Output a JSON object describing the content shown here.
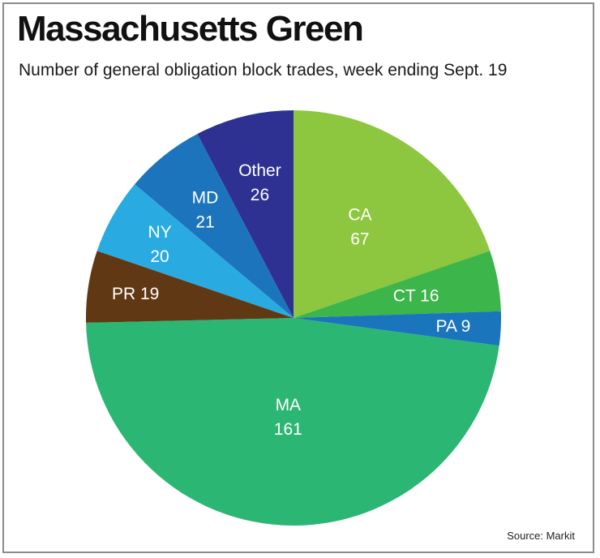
{
  "header": {
    "title": "Massachusetts Green",
    "subtitle": "Number of general obligation block trades, week ending Sept. 19"
  },
  "footer": {
    "source": "Source: Markit"
  },
  "chart_data": {
    "type": "pie",
    "title": "Massachusetts Green",
    "subtitle": "Number of general obligation block trades, week ending Sept. 19",
    "slices": [
      {
        "label": "CA",
        "value": 67,
        "color": "#8dc63f"
      },
      {
        "label": "CT",
        "value": 16,
        "color": "#3cb54a"
      },
      {
        "label": "PA",
        "value": 9,
        "color": "#1a75bc"
      },
      {
        "label": "MA",
        "value": 161,
        "color": "#2bb673"
      },
      {
        "label": "PR",
        "value": 19,
        "color": "#603813"
      },
      {
        "label": "NY",
        "value": 20,
        "color": "#29abe2"
      },
      {
        "label": "MD",
        "value": 21,
        "color": "#1c75bc"
      },
      {
        "label": "Other",
        "value": 26,
        "color": "#2e3192"
      }
    ],
    "start": "12 o'clock",
    "direction": "clockwise",
    "legend": "none"
  }
}
